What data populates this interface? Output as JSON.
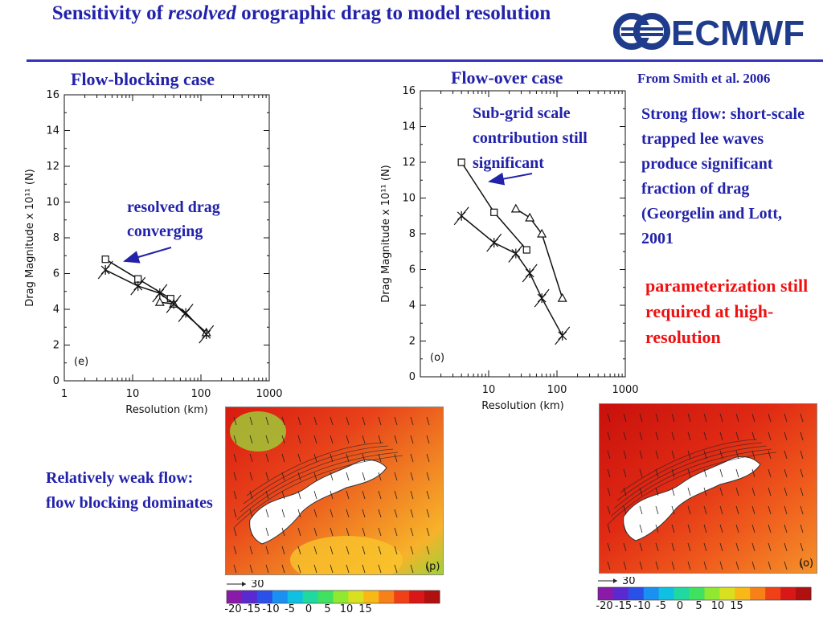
{
  "slide": {
    "title_part1": "Sensitivity of ",
    "title_italic": "resolved",
    "title_part2": " orographic drag to model resolution",
    "logo_text": "ECMWF",
    "logo_mark": "ECMWF logo"
  },
  "headings": {
    "blocking": "Flow-blocking case",
    "over": "Flow-over case"
  },
  "citation": "From Smith et al. 2006",
  "notes": {
    "resolved_drag": "resolved drag converging",
    "subgrid": "Sub-grid scale contribution still significant",
    "strong_flow": "Strong flow: short-scale trapped lee waves produce significant fraction of drag (Georgelin and Lott, 2001",
    "parameterization": "parameterization still required at high-resolution",
    "weak_flow": "Relatively weak flow: flow blocking dominates"
  },
  "colors": {
    "heading_blue": "#2222aa",
    "note_red": "#ee1111",
    "logo_blue": "#1f3c8c"
  },
  "chart_data": [
    {
      "type": "line",
      "panel_label": "(e)",
      "xlabel": "Resolution (km)",
      "ylabel": "Drag Magnitude x 10¹¹ (N)",
      "xscale": "log",
      "xlim": [
        1,
        1000
      ],
      "ylim": [
        0,
        16
      ],
      "xticks": [
        "1",
        "10",
        "100",
        "1000"
      ],
      "yticks": [
        "0",
        "2",
        "4",
        "6",
        "8",
        "10",
        "12",
        "14",
        "16"
      ],
      "series": [
        {
          "marker": "square",
          "x": [
            4,
            12,
            36
          ],
          "y": [
            6.8,
            5.7,
            4.6
          ]
        },
        {
          "marker": "triangle",
          "x": [
            25,
            40,
            120
          ],
          "y": [
            4.4,
            4.3,
            2.7
          ]
        },
        {
          "marker": "asterisk",
          "x": [
            4,
            12,
            25,
            40,
            60,
            120
          ],
          "y": [
            6.2,
            5.3,
            4.9,
            4.3,
            3.8,
            2.6
          ]
        }
      ]
    },
    {
      "type": "line",
      "panel_label": "(o)",
      "xlabel": "Resolution (km)",
      "ylabel": "Drag Magnitude x 10¹¹ (N)",
      "xscale": "log",
      "xlim": [
        1,
        1000
      ],
      "ylim": [
        0,
        16
      ],
      "xticks": [
        "10",
        "100",
        "1000"
      ],
      "yticks": [
        "0",
        "2",
        "4",
        "6",
        "8",
        "10",
        "12",
        "14",
        "16"
      ],
      "series": [
        {
          "marker": "square",
          "x": [
            4,
            12,
            36
          ],
          "y": [
            12.0,
            9.2,
            7.1
          ]
        },
        {
          "marker": "triangle",
          "x": [
            25,
            40,
            60,
            120
          ],
          "y": [
            9.4,
            8.9,
            8.0,
            4.4
          ]
        },
        {
          "marker": "asterisk",
          "x": [
            4,
            12,
            25,
            40,
            60,
            120
          ],
          "y": [
            9.0,
            7.5,
            6.9,
            5.8,
            4.4,
            2.3
          ]
        }
      ]
    }
  ],
  "maps": {
    "left_panel_label": "(p)",
    "right_panel_label": "(o)",
    "vector_scale": "30",
    "colorbar_ticks": [
      "-20",
      "-15",
      "-10",
      "-5",
      "0",
      "5",
      "10",
      "15"
    ]
  }
}
